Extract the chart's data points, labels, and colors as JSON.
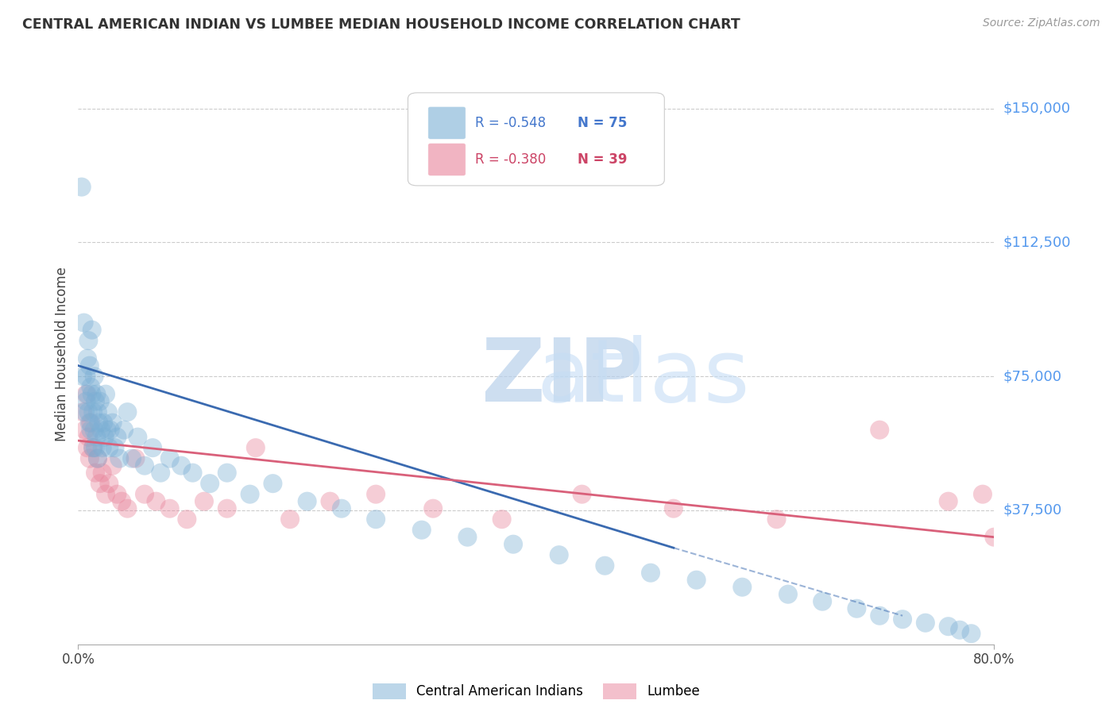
{
  "title": "CENTRAL AMERICAN INDIAN VS LUMBEE MEDIAN HOUSEHOLD INCOME CORRELATION CHART",
  "source": "Source: ZipAtlas.com",
  "ylabel": "Median Household Income",
  "xlim": [
    0.0,
    0.8
  ],
  "ylim": [
    0,
    162500
  ],
  "yticks": [
    37500,
    75000,
    112500,
    150000
  ],
  "ytick_labels": [
    "$37,500",
    "$75,000",
    "$112,500",
    "$150,000"
  ],
  "xtick_positions": [
    0.0,
    0.8
  ],
  "xtick_labels": [
    "0.0%",
    "80.0%"
  ],
  "background_color": "#ffffff",
  "grid_color": "#cccccc",
  "blue_color": "#7bafd4",
  "pink_color": "#e8839a",
  "blue_line_color": "#3a6ab0",
  "pink_line_color": "#d9607a",
  "legend_blue_R": "-0.548",
  "legend_blue_N": "75",
  "legend_pink_R": "-0.380",
  "legend_pink_N": "39",
  "watermark_zip": "ZIP",
  "watermark_atlas": "atlas",
  "blue_scatter_x": [
    0.003,
    0.004,
    0.005,
    0.006,
    0.007,
    0.007,
    0.008,
    0.008,
    0.009,
    0.009,
    0.01,
    0.01,
    0.011,
    0.011,
    0.012,
    0.012,
    0.013,
    0.013,
    0.014,
    0.014,
    0.015,
    0.015,
    0.016,
    0.016,
    0.017,
    0.017,
    0.018,
    0.019,
    0.02,
    0.021,
    0.022,
    0.023,
    0.024,
    0.025,
    0.026,
    0.027,
    0.028,
    0.03,
    0.032,
    0.034,
    0.036,
    0.04,
    0.043,
    0.047,
    0.052,
    0.058,
    0.065,
    0.072,
    0.08,
    0.09,
    0.1,
    0.115,
    0.13,
    0.15,
    0.17,
    0.2,
    0.23,
    0.26,
    0.3,
    0.34,
    0.38,
    0.42,
    0.46,
    0.5,
    0.54,
    0.58,
    0.62,
    0.65,
    0.68,
    0.7,
    0.72,
    0.74,
    0.76,
    0.77,
    0.78
  ],
  "blue_scatter_y": [
    128000,
    75000,
    90000,
    65000,
    75000,
    68000,
    80000,
    70000,
    85000,
    65000,
    78000,
    62000,
    72000,
    60000,
    88000,
    70000,
    65000,
    55000,
    75000,
    60000,
    68000,
    55000,
    70000,
    58000,
    65000,
    52000,
    62000,
    68000,
    60000,
    55000,
    62000,
    58000,
    70000,
    60000,
    65000,
    55000,
    60000,
    62000,
    55000,
    58000,
    52000,
    60000,
    65000,
    52000,
    58000,
    50000,
    55000,
    48000,
    52000,
    50000,
    48000,
    45000,
    48000,
    42000,
    45000,
    40000,
    38000,
    35000,
    32000,
    30000,
    28000,
    25000,
    22000,
    20000,
    18000,
    16000,
    14000,
    12000,
    10000,
    8000,
    7000,
    6000,
    5000,
    4000,
    3000
  ],
  "pink_scatter_x": [
    0.004,
    0.006,
    0.007,
    0.008,
    0.009,
    0.01,
    0.011,
    0.013,
    0.015,
    0.017,
    0.019,
    0.021,
    0.024,
    0.027,
    0.03,
    0.034,
    0.038,
    0.043,
    0.05,
    0.058,
    0.068,
    0.08,
    0.095,
    0.11,
    0.13,
    0.155,
    0.185,
    0.22,
    0.26,
    0.31,
    0.37,
    0.44,
    0.52,
    0.61,
    0.7,
    0.76,
    0.79,
    0.8,
    0.81
  ],
  "pink_scatter_y": [
    65000,
    60000,
    70000,
    55000,
    58000,
    52000,
    62000,
    55000,
    48000,
    52000,
    45000,
    48000,
    42000,
    45000,
    50000,
    42000,
    40000,
    38000,
    52000,
    42000,
    40000,
    38000,
    35000,
    40000,
    38000,
    55000,
    35000,
    40000,
    42000,
    38000,
    35000,
    42000,
    38000,
    35000,
    60000,
    40000,
    42000,
    30000,
    38000
  ],
  "blue_trend_x0": 0.0,
  "blue_trend_y0": 78000,
  "blue_trend_x1": 0.52,
  "blue_trend_y1": 27000,
  "blue_trend_ext_x1": 0.72,
  "blue_trend_ext_y1": 8000,
  "pink_trend_x0": 0.0,
  "pink_trend_y0": 57000,
  "pink_trend_x1": 0.8,
  "pink_trend_y1": 30000
}
